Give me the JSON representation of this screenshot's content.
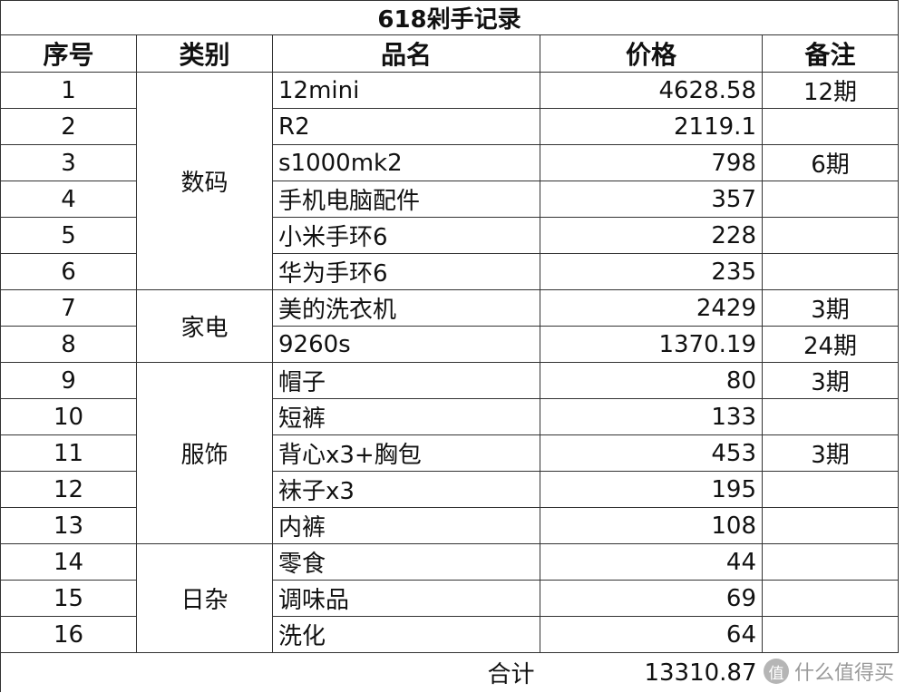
{
  "table": {
    "title": "618剁手记录",
    "headers": [
      "序号",
      "类别",
      "品名",
      "价格",
      "备注"
    ],
    "groups": [
      {
        "category": "数码",
        "rows": [
          {
            "index": "1",
            "name": "12mini",
            "price": "4628.58",
            "note": "12期"
          },
          {
            "index": "2",
            "name": "R2",
            "price": "2119.1"
          },
          {
            "index": "3",
            "name": "s1000mk2",
            "price": "798",
            "note": "6期"
          },
          {
            "index": "4",
            "name": "手机电脑配件",
            "price": "357"
          },
          {
            "index": "5",
            "name": "小米手环6",
            "price": "228"
          },
          {
            "index": "6",
            "name": "华为手环6",
            "price": "235"
          }
        ]
      },
      {
        "category": "家电",
        "rows": [
          {
            "index": "7",
            "name": "美的洗衣机",
            "price": "2429",
            "note": "3期"
          },
          {
            "index": "8",
            "name": "9260s",
            "price": "1370.19",
            "note": "24期"
          }
        ]
      },
      {
        "category": "服饰",
        "rows": [
          {
            "index": "9",
            "name": "帽子",
            "price": "80",
            "note": "3期"
          },
          {
            "index": "10",
            "name": "短裤",
            "price": "133"
          },
          {
            "index": "11",
            "name": "背心x3+胸包",
            "price": "453",
            "note": "3期"
          },
          {
            "index": "12",
            "name": "袜子x3",
            "price": "195"
          },
          {
            "index": "13",
            "name": "内裤",
            "price": "108"
          }
        ]
      },
      {
        "category": "日杂",
        "rows": [
          {
            "index": "14",
            "name": "零食",
            "price": "44"
          },
          {
            "index": "15",
            "name": "调味品",
            "price": "69"
          },
          {
            "index": "16",
            "name": "洗化",
            "price": "64"
          }
        ]
      }
    ],
    "total_label": "合计",
    "total": "13310.87"
  },
  "watermark": {
    "icon": "值",
    "text": "什么值得买"
  }
}
